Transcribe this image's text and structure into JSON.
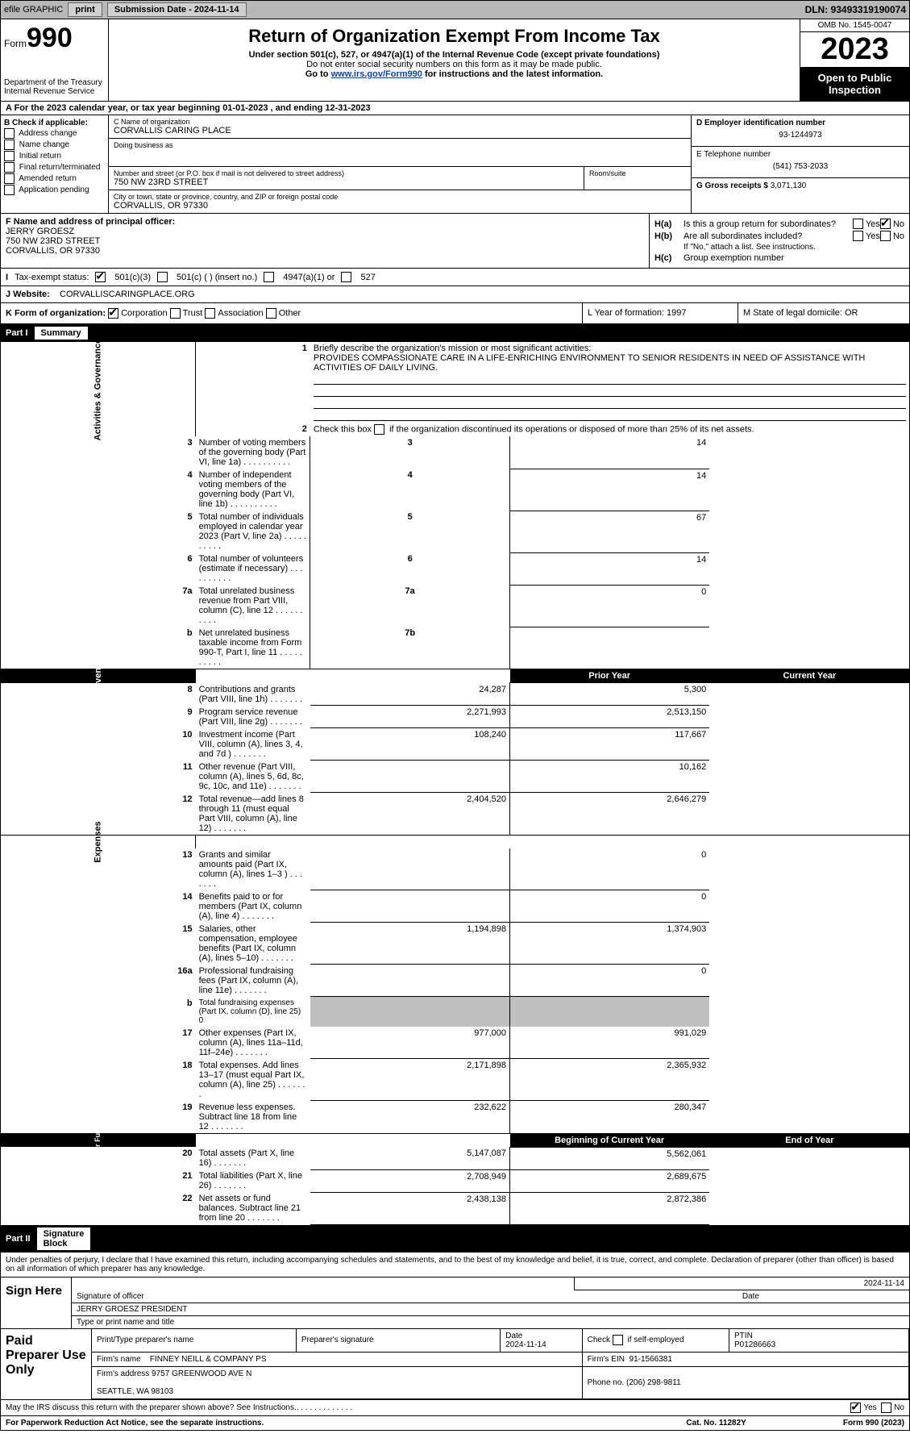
{
  "topbar": {
    "efile": "efile GRAPHIC",
    "print": "print",
    "sub_lbl": "Submission Date - ",
    "sub_date": "2024-11-14",
    "dln_lbl": "DLN: ",
    "dln": "93493319190074"
  },
  "hdr": {
    "form_word": "Form",
    "form_num": "990",
    "dept": "Department of the Treasury\nInternal Revenue Service",
    "title": "Return of Organization Exempt From Income Tax",
    "sub1": "Under section 501(c), 527, or 4947(a)(1) of the Internal Revenue Code (except private foundations)",
    "sub2": "Do not enter social security numbers on this form as it may be made public.",
    "sub3_pre": "Go to ",
    "sub3_link": "www.irs.gov/Form990",
    "sub3_post": " for instructions and the latest information.",
    "omb": "OMB No. 1545-0047",
    "year": "2023",
    "insp": "Open to Public Inspection"
  },
  "rowA": {
    "text": "A For the 2023 calendar year, or tax year beginning 01-01-2023    , and ending 12-31-2023"
  },
  "boxB": {
    "title": "B Check if applicable:",
    "items": [
      "Address change",
      "Name change",
      "Initial return",
      "Final return/terminated",
      "Amended return",
      "Application pending"
    ]
  },
  "boxC": {
    "name_lbl": "C Name of organization",
    "name": "CORVALLIS CARING PLACE",
    "dba_lbl": "Doing business as",
    "dba": "",
    "addr_lbl": "Number and street (or P.O. box if mail is not delivered to street address)",
    "room_lbl": "Room/suite",
    "addr": "750 NW 23RD STREET",
    "city_lbl": "City or town, state or province, country, and ZIP or foreign postal code",
    "city": "CORVALLIS, OR  97330"
  },
  "boxD": {
    "lbl": "D Employer identification number",
    "val": "93-1244973"
  },
  "boxE": {
    "lbl": "E Telephone number",
    "val": "(541) 753-2033"
  },
  "boxG": {
    "lbl": "G Gross receipts $",
    "val": "3,071,130"
  },
  "boxF": {
    "lbl": "F  Name and address of principal officer:",
    "name": "JERRY GROESZ",
    "addr": "750 NW 23RD STREET",
    "city": "CORVALLIS, OR  97330"
  },
  "boxH": {
    "a": "Is this a group return for subordinates?",
    "a_yes": "Yes",
    "a_no": "No",
    "a_checked": "no",
    "b": "Are all subordinates included?",
    "b_yes": "Yes",
    "b_no": "No",
    "b_note": "If \"No,\" attach a list. See instructions.",
    "c": "Group exemption number"
  },
  "rowI": {
    "lbl": "Tax-exempt status:",
    "o1": "501(c)(3)",
    "o2": "501(c) (  ) (insert no.)",
    "o3": "4947(a)(1) or",
    "o4": "527",
    "checked": 0
  },
  "rowJ": {
    "lbl": "J   Website:",
    "val": "CORVALLISCARINGPLACE.ORG"
  },
  "rowK": {
    "k": "K Form of organization:",
    "opts": [
      "Corporation",
      "Trust",
      "Association",
      "Other"
    ],
    "checked": 0,
    "l": "L Year of formation: 1997",
    "m": "M State of legal domicile: OR"
  },
  "part1": {
    "pn": "Part I",
    "pt": "Summary",
    "q1_lbl": "Briefly describe the organization's mission or most significant activities:",
    "q1": "PROVIDES COMPASSIONATE CARE IN A LIFE-ENRICHING ENVIRONMENT TO SENIOR RESIDENTS IN NEED OF ASSISTANCE WITH ACTIVITIES OF DAILY LIVING.",
    "q2": "Check this box          if the organization discontinued its operations or disposed of more than 25% of its net assets.",
    "side1": "Activities & Governance",
    "side2": "Revenue",
    "side3": "Expenses",
    "side4": "Net Assets or Fund Balances",
    "rows": [
      {
        "n": "3",
        "t": "Number of voting members of the governing body (Part VI, line 1a)",
        "c": "3",
        "v": "14"
      },
      {
        "n": "4",
        "t": "Number of independent voting members of the governing body (Part VI, line 1b)",
        "c": "4",
        "v": "14"
      },
      {
        "n": "5",
        "t": "Total number of individuals employed in calendar year 2023 (Part V, line 2a)",
        "c": "5",
        "v": "67"
      },
      {
        "n": "6",
        "t": "Total number of volunteers (estimate if necessary)",
        "c": "6",
        "v": "14"
      },
      {
        "n": "7a",
        "t": "Total unrelated business revenue from Part VIII, column (C), line 12",
        "c": "7a",
        "v": "0"
      },
      {
        "n": "b",
        "t": "Net unrelated business taxable income from Form 990-T, Part I, line 11",
        "c": "7b",
        "v": ""
      }
    ],
    "hdr_prior": "Prior Year",
    "hdr_curr": "Current Year",
    "rev": [
      {
        "n": "8",
        "t": "Contributions and grants (Part VIII, line 1h)",
        "p": "24,287",
        "c": "5,300"
      },
      {
        "n": "9",
        "t": "Program service revenue (Part VIII, line 2g)",
        "p": "2,271,993",
        "c": "2,513,150"
      },
      {
        "n": "10",
        "t": "Investment income (Part VIII, column (A), lines 3, 4, and 7d )",
        "p": "108,240",
        "c": "117,667"
      },
      {
        "n": "11",
        "t": "Other revenue (Part VIII, column (A), lines 5, 6d, 8c, 9c, 10c, and 11e)",
        "p": "",
        "c": "10,162"
      },
      {
        "n": "12",
        "t": "Total revenue—add lines 8 through 11 (must equal Part VIII, column (A), line 12)",
        "p": "2,404,520",
        "c": "2,646,279"
      }
    ],
    "exp": [
      {
        "n": "13",
        "t": "Grants and similar amounts paid (Part IX, column (A), lines 1–3 )",
        "p": "",
        "c": "0"
      },
      {
        "n": "14",
        "t": "Benefits paid to or for members (Part IX, column (A), line 4)",
        "p": "",
        "c": "0"
      },
      {
        "n": "15",
        "t": "Salaries, other compensation, employee benefits (Part IX, column (A), lines 5–10)",
        "p": "1,194,898",
        "c": "1,374,903"
      },
      {
        "n": "16a",
        "t": "Professional fundraising fees (Part IX, column (A), line 11e)",
        "p": "",
        "c": "0"
      },
      {
        "n": "b",
        "t": "Total fundraising expenses (Part IX, column (D), line 25) 0",
        "p": "gray",
        "c": "gray"
      },
      {
        "n": "17",
        "t": "Other expenses (Part IX, column (A), lines 11a–11d, 11f–24e)",
        "p": "977,000",
        "c": "991,029"
      },
      {
        "n": "18",
        "t": "Total expenses. Add lines 13–17 (must equal Part IX, column (A), line 25)",
        "p": "2,171,898",
        "c": "2,365,932"
      },
      {
        "n": "19",
        "t": "Revenue less expenses. Subtract line 18 from line 12",
        "p": "232,622",
        "c": "280,347"
      }
    ],
    "hdr_beg": "Beginning of Current Year",
    "hdr_end": "End of Year",
    "net": [
      {
        "n": "20",
        "t": "Total assets (Part X, line 16)",
        "p": "5,147,087",
        "c": "5,562,061"
      },
      {
        "n": "21",
        "t": "Total liabilities (Part X, line 26)",
        "p": "2,708,949",
        "c": "2,689,675"
      },
      {
        "n": "22",
        "t": "Net assets or fund balances. Subtract line 21 from line 20",
        "p": "2,438,138",
        "c": "2,872,386"
      }
    ]
  },
  "part2": {
    "pn": "Part II",
    "pt": "Signature Block",
    "decl": "Under penalties of perjury, I declare that I have examined this return, including accompanying schedules and statements, and to the best of my knowledge and belief, it is true, correct, and complete. Declaration of preparer (other than officer) is based on all information of which preparer has any knowledge.",
    "sign_here": "Sign Here",
    "sig_date": "2024-11-14",
    "sig_lbl": "Signature of officer",
    "date_lbl": "Date",
    "officer": "JERRY GROESZ  PRESIDENT",
    "officer_lbl": "Type or print name and title",
    "paid": "Paid Preparer Use Only",
    "prep_name_lbl": "Print/Type preparer's name",
    "prep_sig_lbl": "Preparer's signature",
    "prep_date_lbl": "Date",
    "prep_date": "2024-11-14",
    "self_lbl": "Check            if self-employed",
    "ptin_lbl": "PTIN",
    "ptin": "P01286663",
    "firm_name_lbl": "Firm's name",
    "firm_name": "FINNEY NEILL & COMPANY PS",
    "firm_ein_lbl": "Firm's EIN",
    "firm_ein": "91-1566381",
    "firm_addr_lbl": "Firm's address",
    "firm_addr": "9757 GREENWOOD AVE N\n\nSEATTLE, WA  98103",
    "phone_lbl": "Phone no.",
    "phone": "(206) 298-9811",
    "discuss": "May the IRS discuss this return with the preparer shown above? See Instructions.",
    "d_yes": "Yes",
    "d_no": "No"
  },
  "footer": {
    "l": "For Paperwork Reduction Act Notice, see the separate instructions.",
    "c": "Cat. No. 11282Y",
    "r": "Form 990 (2023)"
  }
}
